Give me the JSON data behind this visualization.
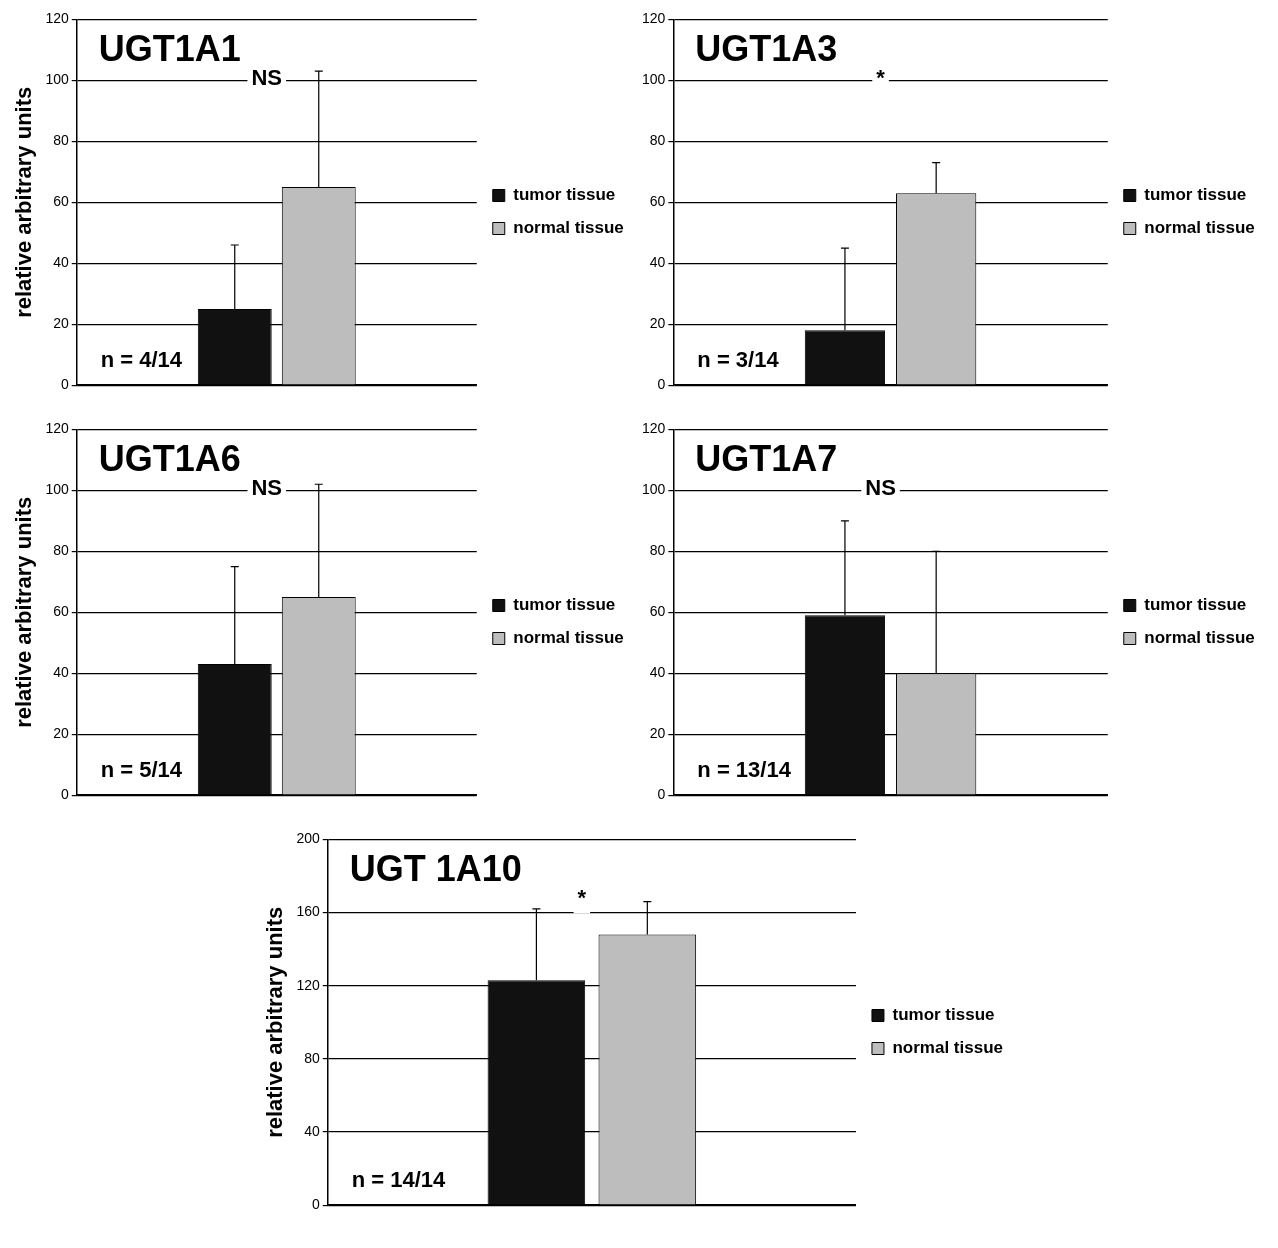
{
  "chart_data": [
    {
      "type": "bar",
      "title": "UGT1A1",
      "ylabel": "relative arbitrary units",
      "categories": [
        null
      ],
      "series": [
        {
          "name": "tumor tissue",
          "color": "#111111",
          "values": [
            25
          ],
          "errors": [
            [
              25,
              46
            ]
          ]
        },
        {
          "name": "normal tissue",
          "color": "#bdbdbd",
          "values": [
            65
          ],
          "errors": [
            [
              65,
              103
            ]
          ]
        }
      ],
      "ylim": [
        0,
        120
      ],
      "yticks": [
        0,
        20,
        40,
        60,
        80,
        100,
        120
      ],
      "grid": "y",
      "legend": "right",
      "annotations": [
        "NS",
        "n = 4/14"
      ]
    },
    {
      "type": "bar",
      "title": "UGT1A3",
      "categories": [
        null
      ],
      "series": [
        {
          "name": "tumor tissue",
          "color": "#111111",
          "values": [
            18
          ],
          "errors": [
            [
              18,
              45
            ]
          ]
        },
        {
          "name": "normal tissue",
          "color": "#bdbdbd",
          "values": [
            63
          ],
          "errors": [
            [
              63,
              73
            ]
          ]
        }
      ],
      "ylim": [
        0,
        120
      ],
      "yticks": [
        0,
        20,
        40,
        60,
        80,
        100,
        120
      ],
      "grid": "y",
      "legend": "right",
      "annotations": [
        "*",
        "n = 3/14"
      ]
    },
    {
      "type": "bar",
      "title": "UGT1A6",
      "ylabel": "relative arbitrary units",
      "categories": [
        null
      ],
      "series": [
        {
          "name": "tumor tissue",
          "color": "#111111",
          "values": [
            43
          ],
          "errors": [
            [
              43,
              75
            ]
          ]
        },
        {
          "name": "normal tissue",
          "color": "#bdbdbd",
          "values": [
            65
          ],
          "errors": [
            [
              65,
              102
            ]
          ]
        }
      ],
      "ylim": [
        0,
        120
      ],
      "yticks": [
        0,
        20,
        40,
        60,
        80,
        100,
        120
      ],
      "grid": "y",
      "legend": "right",
      "annotations": [
        "NS",
        "n = 5/14"
      ]
    },
    {
      "type": "bar",
      "title": "UGT1A7",
      "categories": [
        null
      ],
      "series": [
        {
          "name": "tumor tissue",
          "color": "#111111",
          "values": [
            59
          ],
          "errors": [
            [
              59,
              90
            ]
          ]
        },
        {
          "name": "normal tissue",
          "color": "#bdbdbd",
          "values": [
            40
          ],
          "errors": [
            [
              40,
              80
            ]
          ]
        }
      ],
      "ylim": [
        0,
        120
      ],
      "yticks": [
        0,
        20,
        40,
        60,
        80,
        100,
        120
      ],
      "grid": "y",
      "legend": "right",
      "annotations": [
        "NS",
        "n = 13/14"
      ]
    },
    {
      "type": "bar",
      "title": "UGT 1A10",
      "ylabel": "relative arbitrary units",
      "categories": [
        null
      ],
      "series": [
        {
          "name": "tumor tissue",
          "color": "#111111",
          "values": [
            123
          ],
          "errors": [
            [
              123,
              162
            ]
          ]
        },
        {
          "name": "normal tissue",
          "color": "#bdbdbd",
          "values": [
            148
          ],
          "errors": [
            [
              148,
              166
            ]
          ]
        }
      ],
      "ylim": [
        0,
        200
      ],
      "yticks": [
        0,
        40,
        80,
        120,
        160,
        200
      ],
      "grid": "y",
      "legend": "right",
      "annotations": [
        "*",
        "n = 14/14"
      ]
    }
  ]
}
